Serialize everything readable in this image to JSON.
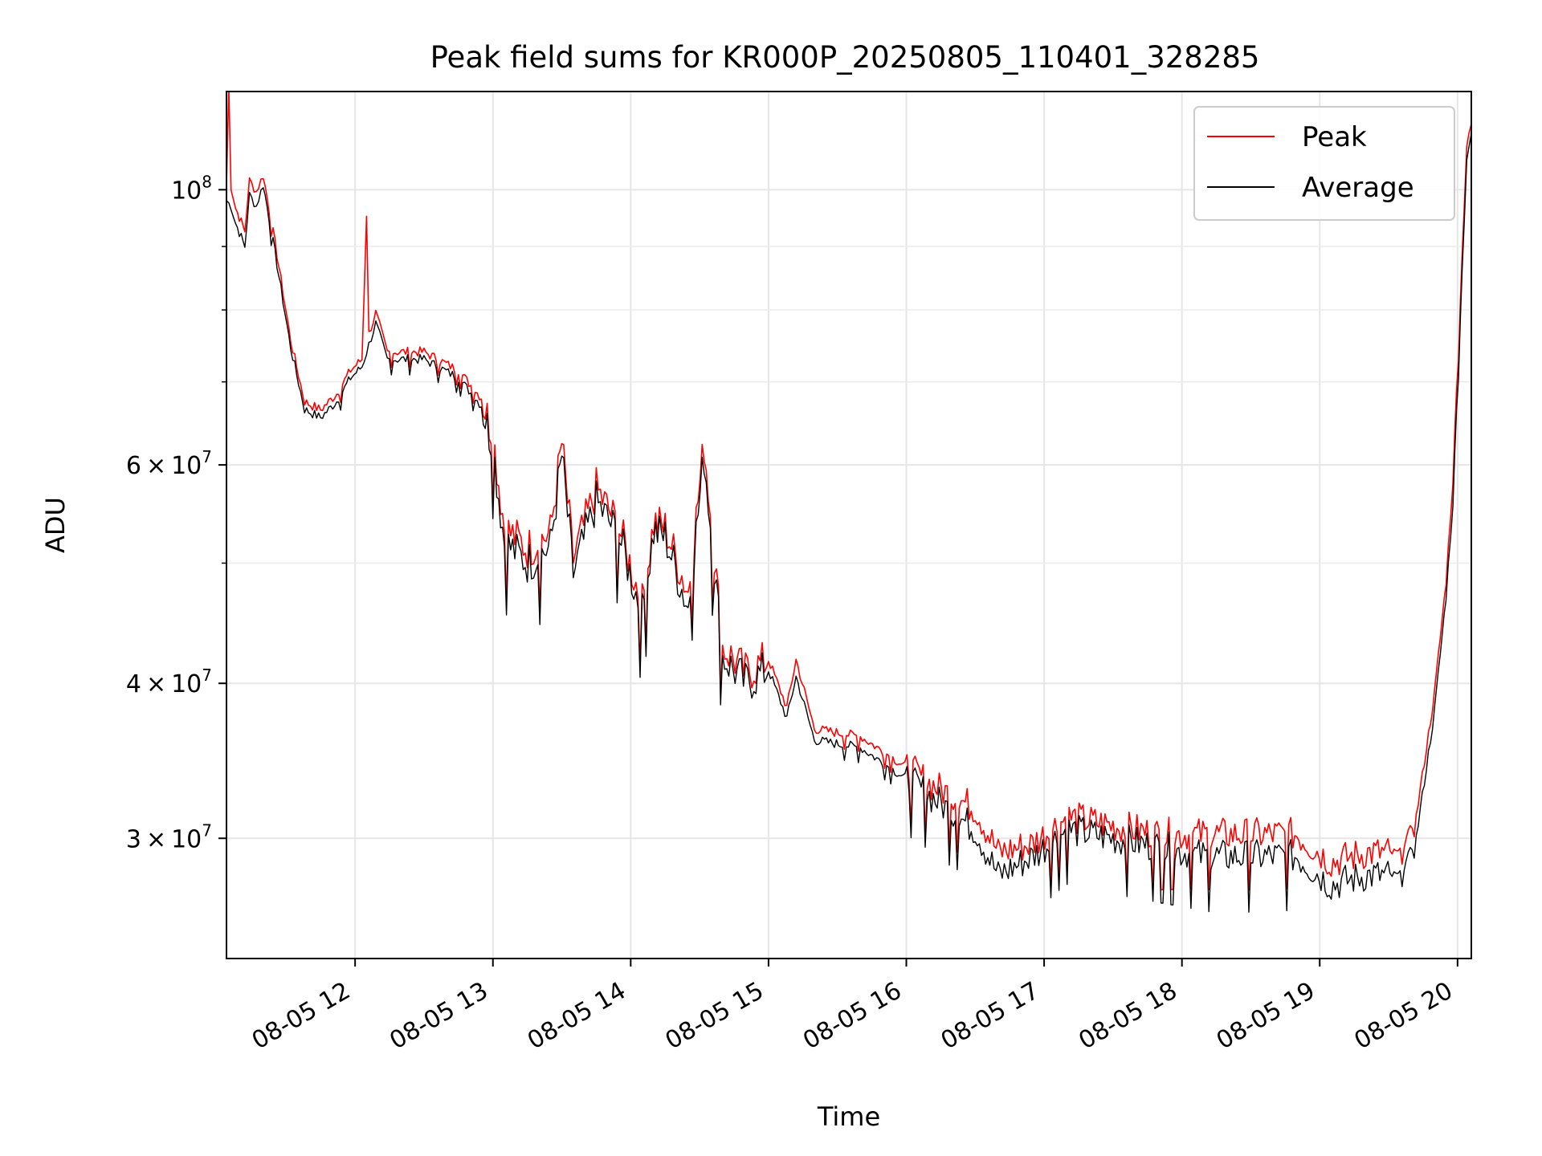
{
  "chart_data": {
    "type": "line",
    "title": "Peak field sums for KR000P_20250805_110401_328285",
    "xlabel": "Time",
    "ylabel": "ADU",
    "y_scale": "log",
    "ylim": [
      24000000,
      120000000
    ],
    "xlim": [
      "08-05 11:04",
      "08-05 20:06"
    ],
    "x_ticks": [
      {
        "value": "08-05 12:00",
        "label": "08-05 12"
      },
      {
        "value": "08-05 13:00",
        "label": "08-05 13"
      },
      {
        "value": "08-05 14:00",
        "label": "08-05 14"
      },
      {
        "value": "08-05 15:00",
        "label": "08-05 15"
      },
      {
        "value": "08-05 16:00",
        "label": "08-05 16"
      },
      {
        "value": "08-05 17:00",
        "label": "08-05 17"
      },
      {
        "value": "08-05 18:00",
        "label": "08-05 18"
      },
      {
        "value": "08-05 19:00",
        "label": "08-05 19"
      },
      {
        "value": "08-05 20:00",
        "label": "08-05 20"
      }
    ],
    "y_ticks": [
      {
        "value": 30000000,
        "mantissa": "3",
        "exponent": "7"
      },
      {
        "value": 40000000,
        "mantissa": "4",
        "exponent": "7"
      },
      {
        "value": 60000000,
        "mantissa": "6",
        "exponent": "7"
      },
      {
        "value": 100000000,
        "mantissa": "",
        "exponent": "8"
      }
    ],
    "y_minor_ticks": [
      50000000,
      70000000,
      80000000,
      90000000
    ],
    "grid": true,
    "legend_position": "top-right",
    "series": [
      {
        "name": "Peak",
        "color": "#ff0000",
        "points": [
          [
            "08-05 11:04",
            100000000
          ],
          [
            "08-05 11:05",
            120000000
          ],
          [
            "08-05 11:06",
            100000000
          ],
          [
            "08-05 11:08",
            96000000
          ],
          [
            "08-05 11:12",
            92000000
          ],
          [
            "08-05 11:14",
            101000000
          ],
          [
            "08-05 11:17",
            99000000
          ],
          [
            "08-05 11:20",
            102000000
          ],
          [
            "08-05 11:26",
            88000000
          ],
          [
            "08-05 11:32",
            75000000
          ],
          [
            "08-05 11:38",
            67000000
          ],
          [
            "08-05 11:45",
            66000000
          ],
          [
            "08-05 11:52",
            68000000
          ],
          [
            "08-05 11:58",
            71000000
          ],
          [
            "08-05 12:03",
            72500000
          ],
          [
            "08-05 12:05",
            95000000
          ],
          [
            "08-05 12:06",
            76000000
          ],
          [
            "08-05 12:09",
            79000000
          ],
          [
            "08-05 12:14",
            73500000
          ],
          [
            "08-05 12:30",
            73500000
          ],
          [
            "08-05 12:45",
            71000000
          ],
          [
            "08-05 12:55",
            67500000
          ],
          [
            "08-05 13:00",
            63000000
          ],
          [
            "08-05 13:05",
            53000000
          ],
          [
            "08-05 13:15",
            51000000
          ],
          [
            "08-05 13:25",
            52500000
          ],
          [
            "08-05 13:30",
            62000000
          ],
          [
            "08-05 13:35",
            50000000
          ],
          [
            "08-05 13:45",
            57000000
          ],
          [
            "08-05 13:55",
            53000000
          ],
          [
            "08-05 14:05",
            46000000
          ],
          [
            "08-05 14:10",
            53500000
          ],
          [
            "08-05 14:15",
            53000000
          ],
          [
            "08-05 14:25",
            47000000
          ],
          [
            "08-05 14:32",
            62000000
          ],
          [
            "08-05 14:40",
            42500000
          ],
          [
            "08-05 14:50",
            40500000
          ],
          [
            "08-05 15:00",
            41500000
          ],
          [
            "08-05 15:08",
            38000000
          ],
          [
            "08-05 15:12",
            41500000
          ],
          [
            "08-05 15:20",
            36500000
          ],
          [
            "08-05 15:40",
            36000000
          ],
          [
            "08-05 15:55",
            34500000
          ],
          [
            "08-05 16:10",
            33000000
          ],
          [
            "08-05 16:30",
            31500000
          ],
          [
            "08-05 16:40",
            29000000
          ],
          [
            "08-05 16:55",
            29500000
          ],
          [
            "08-05 17:10",
            31000000
          ],
          [
            "08-05 17:30",
            30500000
          ],
          [
            "08-05 17:50",
            30000000
          ],
          [
            "08-05 18:10",
            30000000
          ],
          [
            "08-05 18:30",
            30000000
          ],
          [
            "08-05 18:50",
            30000000
          ],
          [
            "08-05 19:05",
            28500000
          ],
          [
            "08-05 19:20",
            29000000
          ],
          [
            "08-05 19:35",
            29000000
          ],
          [
            "08-05 19:42",
            31000000
          ],
          [
            "08-05 19:50",
            39000000
          ],
          [
            "08-05 19:55",
            48000000
          ],
          [
            "08-05 19:58",
            58000000
          ],
          [
            "08-05 20:02",
            88000000
          ],
          [
            "08-05 20:04",
            108000000
          ],
          [
            "08-05 20:06",
            113000000
          ]
        ]
      },
      {
        "name": "Average",
        "color": "#000000",
        "points": [
          [
            "08-05 11:04",
            98000000
          ],
          [
            "08-05 11:06",
            97000000
          ],
          [
            "08-05 11:08",
            94000000
          ],
          [
            "08-05 11:12",
            90000000
          ],
          [
            "08-05 11:14",
            99000000
          ],
          [
            "08-05 11:17",
            97000000
          ],
          [
            "08-05 11:20",
            101000000
          ],
          [
            "08-05 11:26",
            87000000
          ],
          [
            "08-05 11:32",
            74500000
          ],
          [
            "08-05 11:38",
            66500000
          ],
          [
            "08-05 11:45",
            65500000
          ],
          [
            "08-05 11:52",
            67500000
          ],
          [
            "08-05 11:58",
            70500000
          ],
          [
            "08-05 12:03",
            72000000
          ],
          [
            "08-05 12:06",
            75000000
          ],
          [
            "08-05 12:09",
            78000000
          ],
          [
            "08-05 12:14",
            73000000
          ],
          [
            "08-05 12:30",
            73000000
          ],
          [
            "08-05 12:45",
            70500000
          ],
          [
            "08-05 12:55",
            67000000
          ],
          [
            "08-05 13:00",
            62000000
          ],
          [
            "08-05 13:05",
            52000000
          ],
          [
            "08-05 13:15",
            50000000
          ],
          [
            "08-05 13:25",
            51500000
          ],
          [
            "08-05 13:30",
            61000000
          ],
          [
            "08-05 13:35",
            49000000
          ],
          [
            "08-05 13:45",
            56000000
          ],
          [
            "08-05 13:55",
            52500000
          ],
          [
            "08-05 14:05",
            45500000
          ],
          [
            "08-05 14:10",
            53000000
          ],
          [
            "08-05 14:15",
            52500000
          ],
          [
            "08-05 14:25",
            46000000
          ],
          [
            "08-05 14:32",
            61000000
          ],
          [
            "08-05 14:40",
            42000000
          ],
          [
            "08-05 14:50",
            40000000
          ],
          [
            "08-05 15:00",
            41000000
          ],
          [
            "08-05 15:08",
            37500000
          ],
          [
            "08-05 15:12",
            40500000
          ],
          [
            "08-05 15:20",
            36000000
          ],
          [
            "08-05 15:40",
            35500000
          ],
          [
            "08-05 15:55",
            34000000
          ],
          [
            "08-05 16:10",
            32500000
          ],
          [
            "08-05 16:30",
            30500000
          ],
          [
            "08-05 16:40",
            28000000
          ],
          [
            "08-05 16:55",
            29000000
          ],
          [
            "08-05 17:10",
            30500000
          ],
          [
            "08-05 17:30",
            30000000
          ],
          [
            "08-05 17:50",
            29500000
          ],
          [
            "08-05 18:10",
            29000000
          ],
          [
            "08-05 18:30",
            29000000
          ],
          [
            "08-05 18:50",
            29000000
          ],
          [
            "08-05 19:05",
            27500000
          ],
          [
            "08-05 19:20",
            28000000
          ],
          [
            "08-05 19:35",
            28000000
          ],
          [
            "08-05 19:42",
            30000000
          ],
          [
            "08-05 19:50",
            38000000
          ],
          [
            "08-05 19:55",
            47000000
          ],
          [
            "08-05 19:58",
            56000000
          ],
          [
            "08-05 20:02",
            86000000
          ],
          [
            "08-05 20:04",
            106000000
          ],
          [
            "08-05 20:06",
            111000000
          ]
        ]
      }
    ]
  }
}
